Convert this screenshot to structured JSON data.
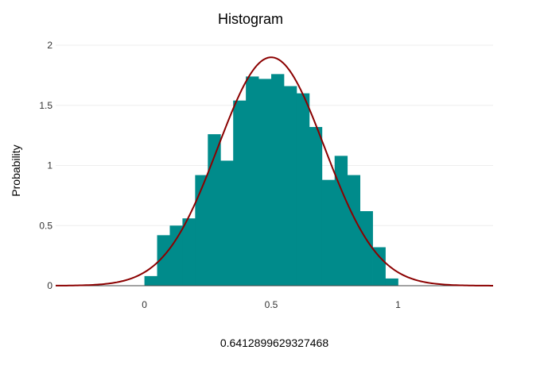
{
  "chart_data": {
    "type": "bar",
    "title": "Histogram",
    "xlabel": "0.6412899629327468",
    "ylabel": "Probability",
    "xlim": [
      -0.35,
      1.375
    ],
    "ylim": [
      0,
      2
    ],
    "xticks": [
      0,
      0.5,
      1
    ],
    "xtick_labels": [
      "0",
      "0.5",
      "1"
    ],
    "yticks": [
      0,
      0.5,
      1,
      1.5,
      2
    ],
    "ytick_labels": [
      "0",
      "0.5",
      "1",
      "1.5",
      "2"
    ],
    "grid": true,
    "legend": "none",
    "histogram": {
      "bin_edges": [
        0.0,
        0.05,
        0.1,
        0.15,
        0.2,
        0.25,
        0.3,
        0.35,
        0.4,
        0.45,
        0.5,
        0.55,
        0.6,
        0.65,
        0.7,
        0.75,
        0.8,
        0.85,
        0.9,
        0.95,
        1.0
      ],
      "values": [
        0.08,
        0.42,
        0.5,
        0.56,
        0.92,
        1.26,
        1.04,
        1.54,
        1.74,
        1.72,
        1.76,
        1.66,
        1.6,
        1.32,
        0.88,
        1.08,
        0.92,
        0.62,
        0.32,
        0.06
      ],
      "color": "#008b8b"
    },
    "curve": {
      "type": "normal-pdf",
      "mean": 0.5,
      "sd": 0.21,
      "x_range": [
        -0.35,
        1.375
      ],
      "color": "#8b0000"
    }
  }
}
